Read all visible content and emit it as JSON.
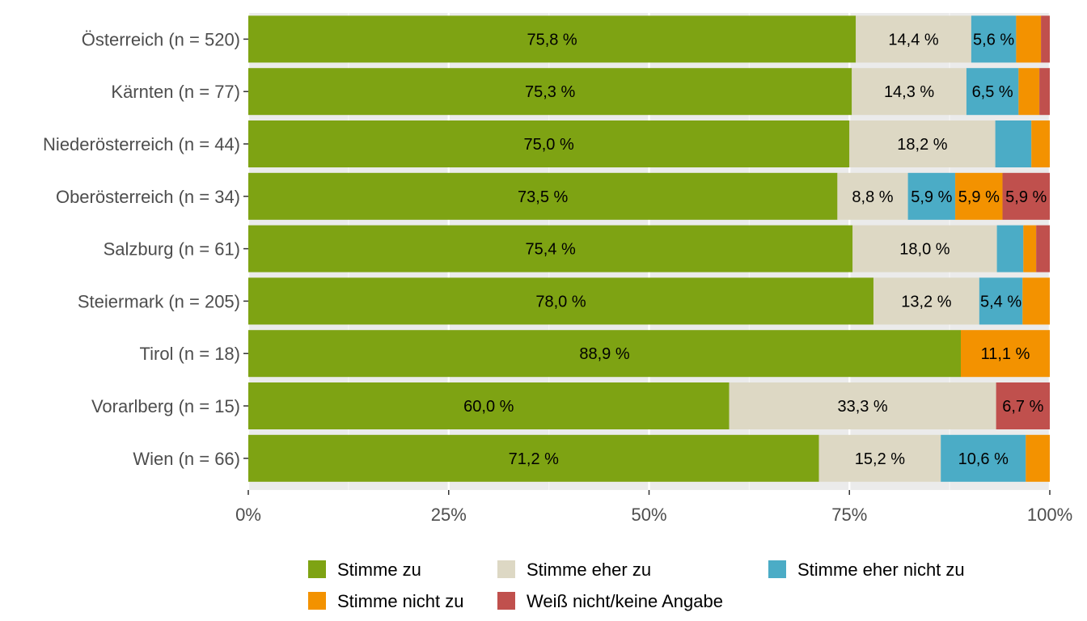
{
  "chart_data": {
    "type": "bar",
    "orientation": "horizontal",
    "stacked": true,
    "categories": [
      "Österreich (n = 520)",
      "Kärnten (n = 77)",
      "Niederösterreich (n = 44)",
      "Oberösterreich (n = 34)",
      "Salzburg (n = 61)",
      "Steiermark (n = 205)",
      "Tirol (n = 18)",
      "Vorarlberg (n = 15)",
      "Wien (n = 66)"
    ],
    "series": [
      {
        "name": "Stimme zu",
        "color": "#7ea313",
        "values": [
          75.8,
          75.3,
          75.0,
          73.5,
          75.4,
          78.0,
          88.9,
          60.0,
          71.2
        ],
        "labels": [
          "75,8 %",
          "75,3 %",
          "75,0 %",
          "73,5 %",
          "75,4 %",
          "78,0 %",
          "88,9 %",
          "60,0 %",
          "71,2 %"
        ]
      },
      {
        "name": "Stimme eher zu",
        "color": "#ddd8c4",
        "values": [
          14.4,
          14.3,
          18.2,
          8.8,
          18.0,
          13.2,
          0.0,
          33.3,
          15.2
        ],
        "labels": [
          "14,4 %",
          "14,3 %",
          "18,2 %",
          "8,8 %",
          "18,0 %",
          "13,2 %",
          "",
          "33,3 %",
          "15,2 %"
        ]
      },
      {
        "name": "Stimme eher nicht zu",
        "color": "#4bacc6",
        "values": [
          5.6,
          6.5,
          4.5,
          5.9,
          3.3,
          5.4,
          0.0,
          0.0,
          10.6
        ],
        "labels": [
          "5,6 %",
          "6,5 %",
          "",
          "5,9 %",
          "",
          "5,4 %",
          "",
          "",
          "10,6 %"
        ]
      },
      {
        "name": "Stimme nicht zu",
        "color": "#f39200",
        "values": [
          3.1,
          2.6,
          2.3,
          5.9,
          1.6,
          3.4,
          11.1,
          0.0,
          3.0
        ],
        "labels": [
          "",
          "",
          "",
          "5,9 %",
          "",
          "",
          "11,1 %",
          "",
          ""
        ]
      },
      {
        "name": "Weiß nicht/keine Angabe",
        "color": "#c0504d",
        "values": [
          1.1,
          1.3,
          0.0,
          5.9,
          1.7,
          0.0,
          0.0,
          6.7,
          0.0
        ],
        "labels": [
          "",
          "",
          "",
          "5,9 %",
          "",
          "",
          "",
          "6,7 %",
          ""
        ]
      }
    ],
    "xlim": [
      0,
      100
    ],
    "x_ticks": [
      "0%",
      "25%",
      "50%",
      "75%",
      "100%"
    ],
    "x_tick_values": [
      0,
      25,
      50,
      75,
      100
    ],
    "grid": true,
    "legend_position": "bottom",
    "title": "",
    "xlabel": "",
    "ylabel": ""
  }
}
